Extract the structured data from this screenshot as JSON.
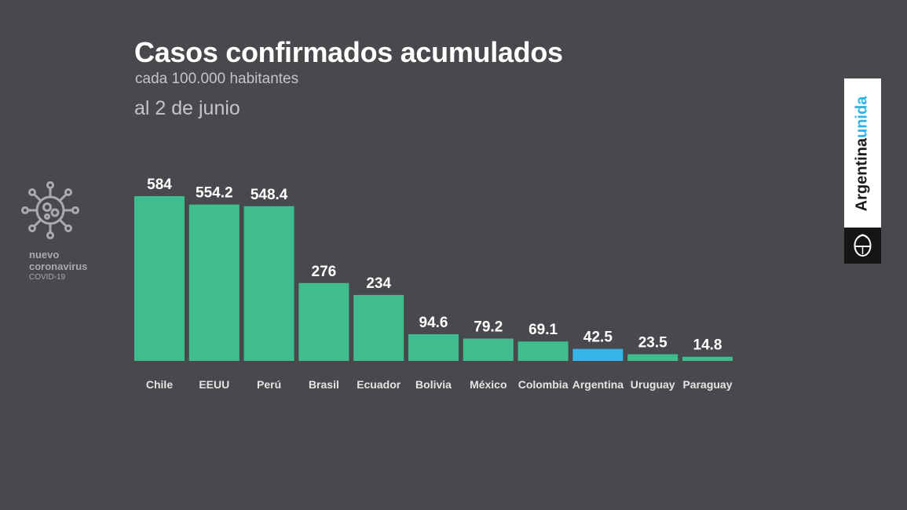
{
  "header": {
    "title": "Casos confirmados acumulados",
    "subtitle": "cada 100.000 habitantes",
    "date": "al 2 de junio"
  },
  "side_logo": {
    "icon": "virus-icon",
    "line1": "nuevo",
    "line2": "coronavirus",
    "line3": "COVID-19"
  },
  "brand": {
    "word1": "Argentina",
    "word2": "unida",
    "seal_icon": "coat-of-arms-icon"
  },
  "colors": {
    "background": "#48494d",
    "bar": "#3fbd8e",
    "highlight": "#35b5ea",
    "text": "#ffffff",
    "category_text": "#e4e4e4",
    "brand_accent": "#2fb2e8"
  },
  "chart_data": {
    "type": "bar",
    "title": "Casos confirmados acumulados",
    "subtitle": "cada 100.000 habitantes",
    "categories": [
      "Chile",
      "EEUU",
      "Perú",
      "Brasil",
      "Ecuador",
      "Bolivia",
      "México",
      "Colombia",
      "Argentina",
      "Uruguay",
      "Paraguay"
    ],
    "values": [
      584,
      554.2,
      548.4,
      276,
      234,
      94.6,
      79.2,
      69.1,
      42.5,
      23.5,
      14.8
    ],
    "value_labels": [
      "584",
      "554.2",
      "548.4",
      "276",
      "234",
      "94.6",
      "79.2",
      "69.1",
      "42.5",
      "23.5",
      "14.8"
    ],
    "highlight": "Argentina",
    "ylim": [
      0,
      584
    ],
    "grid": false,
    "legend": "none"
  }
}
